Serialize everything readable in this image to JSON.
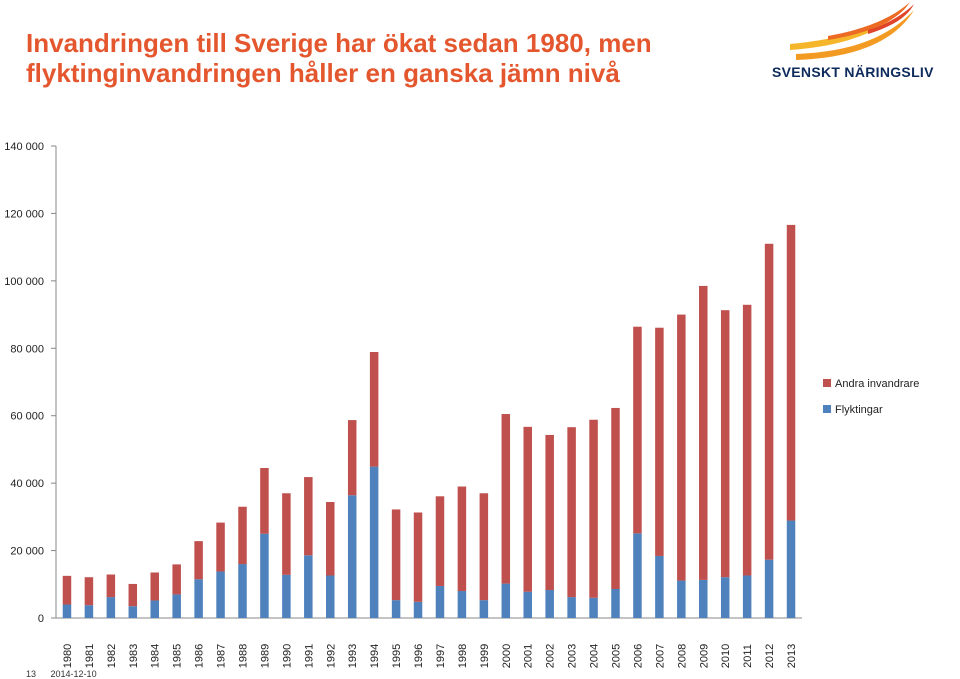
{
  "header": {
    "title": "Invandringen till Sverige har ökat sedan 1980, men flyktinginvandringen håller en ganska jämn nivå",
    "logo_text": "SVENSKT NÄRINGSLIV"
  },
  "footer": {
    "page_number": "13",
    "date": "2014-12-10"
  },
  "colors": {
    "title": "#e4572e",
    "flyktingar": "#4f81bd",
    "andra": "#c0504d",
    "logo_yellow": "#f6b62b",
    "logo_orange": "#ec6a24",
    "logo_text": "#0d2a5c"
  },
  "chart_data": {
    "type": "bar",
    "stacked": true,
    "title": "",
    "xlabel": "",
    "ylabel": "",
    "ylim": [
      0,
      140000
    ],
    "yticks": [
      0,
      20000,
      40000,
      60000,
      80000,
      100000,
      120000,
      140000
    ],
    "ytick_labels": [
      "0",
      "20 000",
      "40 000",
      "60 000",
      "80 000",
      "100 000",
      "120 000",
      "140 000"
    ],
    "grid": false,
    "legend_position": "right",
    "categories": [
      "1980",
      "1981",
      "1982",
      "1983",
      "1984",
      "1985",
      "1986",
      "1987",
      "1988",
      "1989",
      "1990",
      "1991",
      "1992",
      "1993",
      "1994",
      "1995",
      "1996",
      "1997",
      "1998",
      "1999",
      "2000",
      "2001",
      "2002",
      "2003",
      "2004",
      "2005",
      "2006",
      "2007",
      "2008",
      "2009",
      "2010",
      "2011",
      "2012",
      "2013"
    ],
    "series": [
      {
        "name": "Flyktingar",
        "color": "#4f81bd",
        "values": [
          4000,
          3800,
          6200,
          3500,
          5200,
          7000,
          11500,
          13800,
          16000,
          25000,
          12800,
          18600,
          12600,
          36400,
          44900,
          5300,
          4800,
          9500,
          8000,
          5300,
          10200,
          7800,
          8300,
          6200,
          6000,
          8600,
          25100,
          18400,
          11100,
          11300,
          12100,
          12600,
          17300,
          28900
        ]
      },
      {
        "name": "Andra invandrare",
        "color": "#c0504d",
        "values": [
          8500,
          8300,
          6700,
          6600,
          8300,
          8900,
          11300,
          14500,
          17000,
          19500,
          24200,
          23200,
          21800,
          22300,
          34000,
          26900,
          26500,
          26600,
          31000,
          31700,
          50300,
          48900,
          46000,
          50400,
          52800,
          53700,
          61300,
          67700,
          78900,
          87200,
          79200,
          80300,
          93700,
          87700
        ]
      }
    ]
  }
}
